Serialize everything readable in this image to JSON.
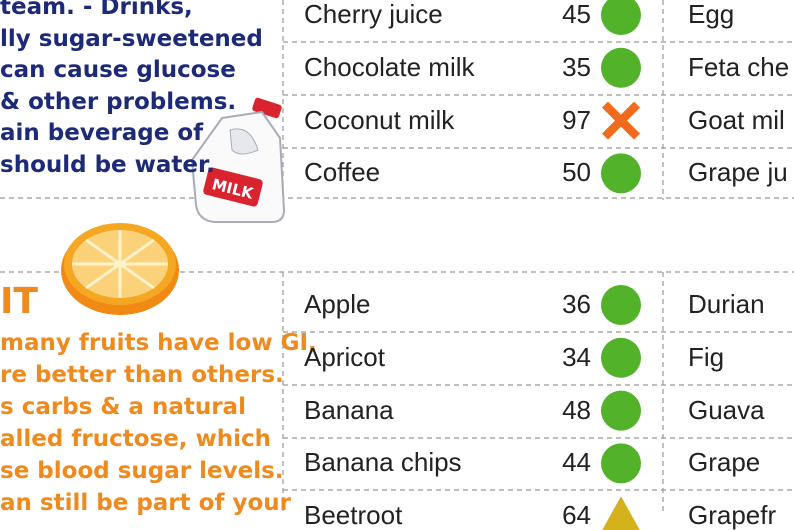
{
  "drinks_note": {
    "lines": [
      "team. - Drinks,",
      "lly sugar-sweetened",
      "can cause glucose",
      "& other problems.",
      "ain beverage of",
      "should be water."
    ]
  },
  "milk_label": "MILK",
  "fruit_note": {
    "heading": "IT",
    "lines": [
      "many fruits have low GI,",
      "re better than others.",
      "s carbs & a natural",
      "alled fructose, which",
      "se blood sugar levels.",
      "an still be part of your"
    ]
  },
  "drinks_table": {
    "rows": [
      {
        "name": "Cherry juice",
        "gi": "45",
        "marker": "low"
      },
      {
        "name": "Chocolate milk",
        "gi": "35",
        "marker": "low"
      },
      {
        "name": "Coconut milk",
        "gi": "97",
        "marker": "high"
      },
      {
        "name": "Coffee",
        "gi": "50",
        "marker": "low"
      }
    ],
    "next_column": [
      "Egg",
      "Feta che",
      "Goat mil",
      "Grape ju"
    ]
  },
  "fruit_table": {
    "rows": [
      {
        "name": "Apple",
        "gi": "36",
        "marker": "low"
      },
      {
        "name": "Apricot",
        "gi": "34",
        "marker": "low"
      },
      {
        "name": "Banana",
        "gi": "48",
        "marker": "low"
      },
      {
        "name": "Banana chips",
        "gi": "44",
        "marker": "low"
      },
      {
        "name": "Beetroot",
        "gi": "64",
        "marker": "medium"
      }
    ],
    "next_column": [
      "Durian",
      "Fig",
      "Guava",
      "Grape",
      "Grapefr"
    ]
  }
}
